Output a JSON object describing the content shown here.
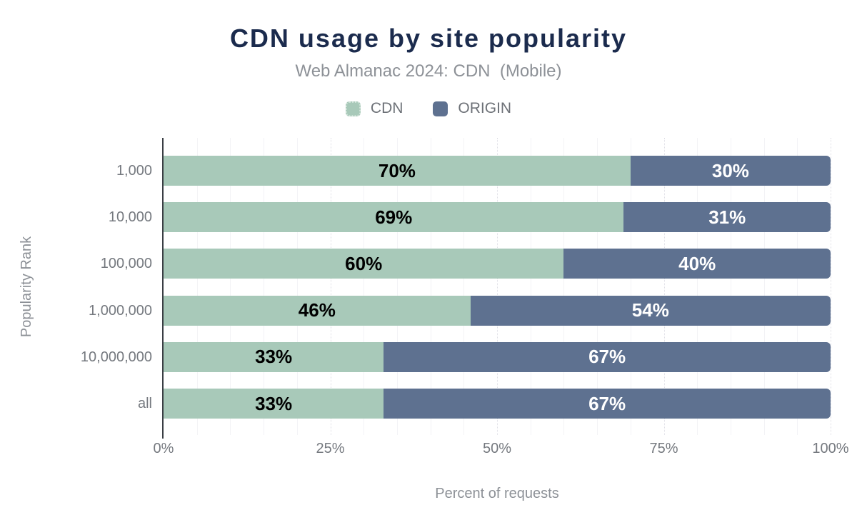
{
  "chart_data": {
    "type": "bar",
    "orientation": "horizontal",
    "stacked": true,
    "title": "CDN usage by site popularity",
    "subtitle": "Web Almanac 2024: CDN  (Mobile)",
    "xlabel": "Percent of requests",
    "ylabel": "Popularity Rank",
    "categories": [
      "1,000",
      "10,000",
      "100,000",
      "1,000,000",
      "10,000,000",
      "all"
    ],
    "series": [
      {
        "name": "CDN",
        "color": "#a8c9b9",
        "label_color": "#000000",
        "values": [
          70,
          69,
          60,
          46,
          33,
          33
        ]
      },
      {
        "name": "ORIGIN",
        "color": "#5e7190",
        "label_color": "#ffffff",
        "values": [
          30,
          31,
          40,
          54,
          67,
          67
        ]
      }
    ],
    "value_suffix": "%",
    "xlim": [
      0,
      100
    ],
    "x_ticks": [
      {
        "value": 0,
        "label": "0%"
      },
      {
        "value": 25,
        "label": "25%"
      },
      {
        "value": 50,
        "label": "50%"
      },
      {
        "value": 75,
        "label": "75%"
      },
      {
        "value": 100,
        "label": "100%"
      }
    ],
    "grid": {
      "minor_interval": 5,
      "major_interval": 25,
      "on": true
    },
    "legend_position": "top"
  },
  "colors": {
    "background": "#ffffff",
    "title": "#1b2b4d",
    "subtitle": "#8d9197",
    "tick": "#75797f",
    "legend_text": "#6d7177",
    "axis_line": "#3a3e44",
    "grid_minor": "#f3f3f6",
    "grid_major": "#dfdfe6",
    "cdn_swatch_border": "#cfe2d8"
  }
}
